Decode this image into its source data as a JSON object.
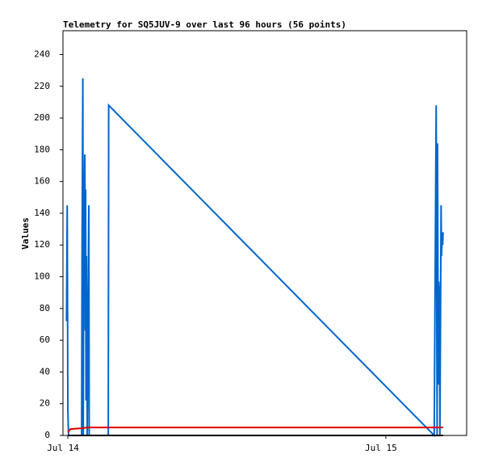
{
  "chart_data": {
    "type": "line",
    "title": "Telemetry for SQ5JUV-9 over last 96 hours (56 points)",
    "y_label": "Values",
    "xlim": [
      -0.37,
      30.1
    ],
    "xticks": [
      {
        "value": 0,
        "label": "Jul 14"
      },
      {
        "value": 24,
        "label": "Jul 15"
      }
    ],
    "ylim": [
      0,
      255
    ],
    "yticks": [
      0,
      20,
      40,
      60,
      80,
      100,
      120,
      140,
      160,
      180,
      200,
      220,
      240
    ],
    "series": [
      {
        "color": "#0066cc",
        "x": [
          -0.1,
          -0.05,
          0.0,
          0.05,
          1.04,
          1.07,
          1.13,
          1.16,
          1.19,
          1.28,
          1.31,
          1.34,
          1.37,
          1.4,
          1.46,
          1.58,
          1.61,
          3.05,
          3.08,
          27.65,
          27.8,
          27.87,
          27.9,
          27.96,
          27.99,
          28.05,
          28.08,
          28.17,
          28.2,
          28.26,
          28.29,
          28.32
        ],
        "values": [
          72,
          145,
          16,
          0,
          0,
          113,
          225,
          0,
          113,
          177,
          66,
          155,
          22,
          113,
          0,
          145,
          0,
          0,
          208,
          0,
          208,
          0,
          184,
          32,
          97,
          88,
          0,
          145,
          113,
          128,
          120,
          128
        ]
      },
      {
        "color": "#dd0000",
        "x": [
          0.0,
          0.2,
          1.0,
          1.5,
          28.32
        ],
        "values": [
          2,
          4,
          4.5,
          5,
          5
        ]
      },
      {
        "color": "#000000",
        "x": [
          0.0,
          28.32
        ],
        "values": [
          0,
          0
        ]
      }
    ]
  }
}
